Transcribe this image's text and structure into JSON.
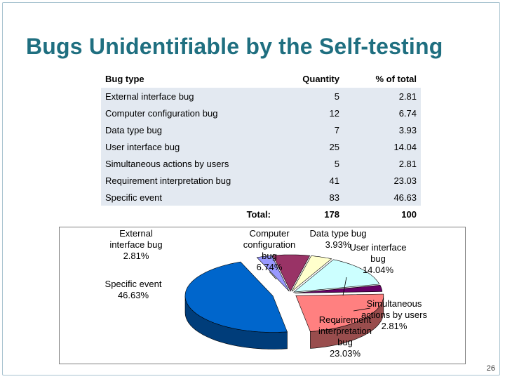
{
  "slide": {
    "title": "Bugs Unidentifiable by the Self-testing",
    "page_number": "26"
  },
  "table": {
    "headers": [
      "Bug type",
      "Quantity",
      "% of total"
    ],
    "rows": [
      {
        "type": "External interface bug",
        "quantity": "5",
        "percent": "2.81"
      },
      {
        "type": "Computer configuration bug",
        "quantity": "12",
        "percent": "6.74"
      },
      {
        "type": "Data type bug",
        "quantity": "7",
        "percent": "3.93"
      },
      {
        "type": "User interface bug",
        "quantity": "25",
        "percent": "14.04"
      },
      {
        "type": "Simultaneous actions by users",
        "quantity": "5",
        "percent": "2.81"
      },
      {
        "type": "Requirement interpretation bug",
        "quantity": "41",
        "percent": "23.03"
      },
      {
        "type": "Specific event",
        "quantity": "83",
        "percent": "46.63"
      }
    ],
    "total_label": "Total:",
    "total_quantity": "178",
    "total_percent": "100"
  },
  "chart_data": {
    "type": "pie",
    "style": "3d-exploded",
    "slices": [
      {
        "label": "External interface bug",
        "value": 2.81,
        "display": "External\ninterface bug\n2.81%",
        "color": "#9999ff"
      },
      {
        "label": "Computer configuration bug",
        "value": 6.74,
        "display": "Computer\nconfiguration\nbug\n6.74%",
        "color": "#993366"
      },
      {
        "label": "Data type bug",
        "value": 3.93,
        "display": "Data type bug\n3.93%",
        "color": "#ffffcc"
      },
      {
        "label": "User interface bug",
        "value": 14.04,
        "display": "User interface\nbug\n14.04%",
        "color": "#ccffff"
      },
      {
        "label": "Simultaneous actions by users",
        "value": 2.81,
        "display": "Simultaneous\nactions by users\n2.81%",
        "color": "#660066"
      },
      {
        "label": "Requirement interpretation bug",
        "value": 23.03,
        "display": "Requirement\ninterpretation\nbug\n23.03%",
        "color": "#ff8080"
      },
      {
        "label": "Specific event",
        "value": 46.63,
        "display": "Specific event\n46.63%",
        "color": "#0066cc"
      }
    ]
  }
}
